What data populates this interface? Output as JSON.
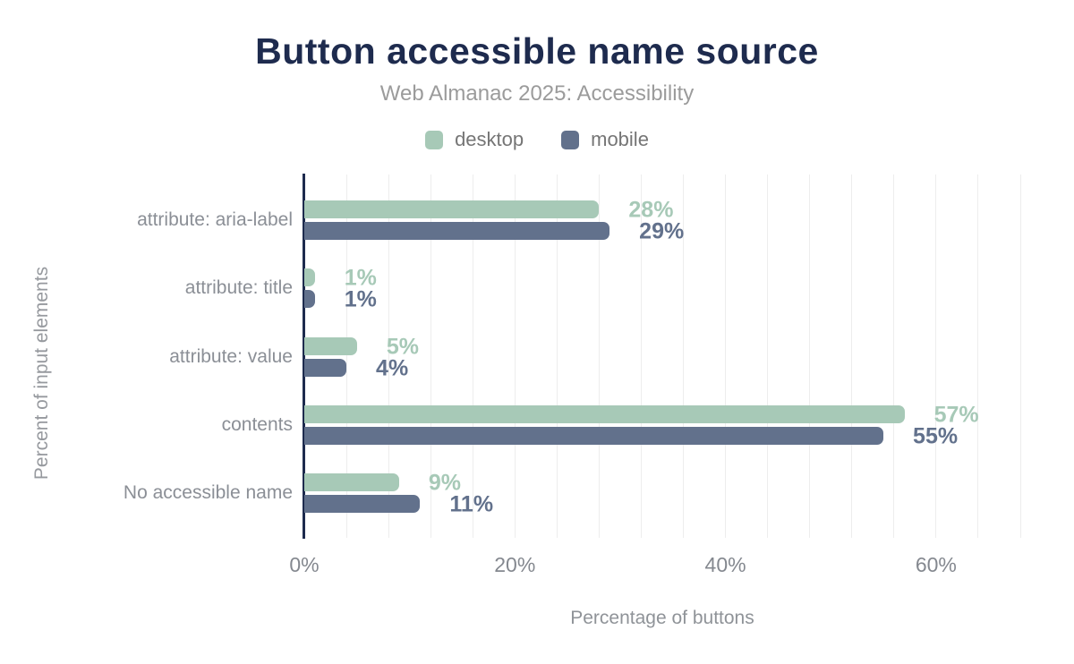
{
  "chart_data": {
    "type": "bar",
    "orientation": "horizontal",
    "title": "Button accessible name source",
    "subtitle": "Web Almanac 2025: Accessibility",
    "xlabel": "Percentage of buttons",
    "ylabel": "Percent of input elements",
    "categories": [
      "attribute: aria-label",
      "attribute: title",
      "attribute: value",
      "contents",
      "No accessible name"
    ],
    "series": [
      {
        "name": "desktop",
        "color": "#a7c9b7",
        "values": [
          28,
          1,
          5,
          57,
          9
        ]
      },
      {
        "name": "mobile",
        "color": "#62718c",
        "values": [
          29,
          1,
          4,
          55,
          11
        ]
      }
    ],
    "value_suffix": "%",
    "x_ticks": [
      0,
      20,
      40,
      60
    ],
    "x_tick_labels": [
      "0%",
      "20%",
      "40%",
      "60%"
    ],
    "xlim": [
      0,
      68
    ],
    "gridline_interval": 4,
    "grid": "vertical",
    "legend_position": "top"
  },
  "colors": {
    "title": "#1e2b4e",
    "axis_line": "#1e2b4e",
    "gridline": "#ededed",
    "desktop": "#a7c9b7",
    "mobile": "#62718c",
    "subtitle_text": "#9b9b9b",
    "legend_text": "#757575",
    "category_text": "#8b8f96",
    "tick_text": "#84888f"
  }
}
